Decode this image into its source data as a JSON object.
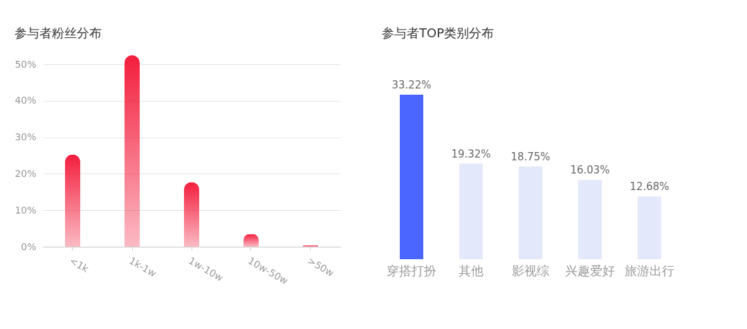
{
  "chart_data": [
    {
      "type": "bar",
      "title": "参与者粉丝分布",
      "categories": [
        "<1k",
        "1k-1w",
        "1w-10w",
        "10w-50w",
        ">50w"
      ],
      "values": [
        25.3,
        52.5,
        17.7,
        3.5,
        0.4
      ],
      "color": "#f31e3d",
      "ylim": [
        0,
        52.5
      ],
      "yticks": [
        {
          "value": 0,
          "label": "0%"
        },
        {
          "value": 10,
          "label": "10%"
        },
        {
          "value": 20,
          "label": "20%"
        },
        {
          "value": 30,
          "label": "30%"
        },
        {
          "value": 40,
          "label": "40%"
        },
        {
          "value": 50,
          "label": "50%"
        }
      ],
      "grid": "y"
    },
    {
      "type": "bar",
      "title": "参与者TOP类别分布",
      "categories": [
        "穿搭打扮",
        "其他",
        "影视综",
        "兴趣爱好",
        "旅游出行"
      ],
      "values": [
        33.22,
        19.32,
        18.75,
        16.03,
        12.68
      ],
      "colors": [
        "#4a66ff",
        "#e3e8fb",
        "#e3e8fb",
        "#e3e8fb",
        "#e3e8fb"
      ],
      "value_labels": [
        "33.22%",
        "19.32%",
        "18.75%",
        "16.03%",
        "12.68%"
      ],
      "tick_labels": "x"
    }
  ]
}
